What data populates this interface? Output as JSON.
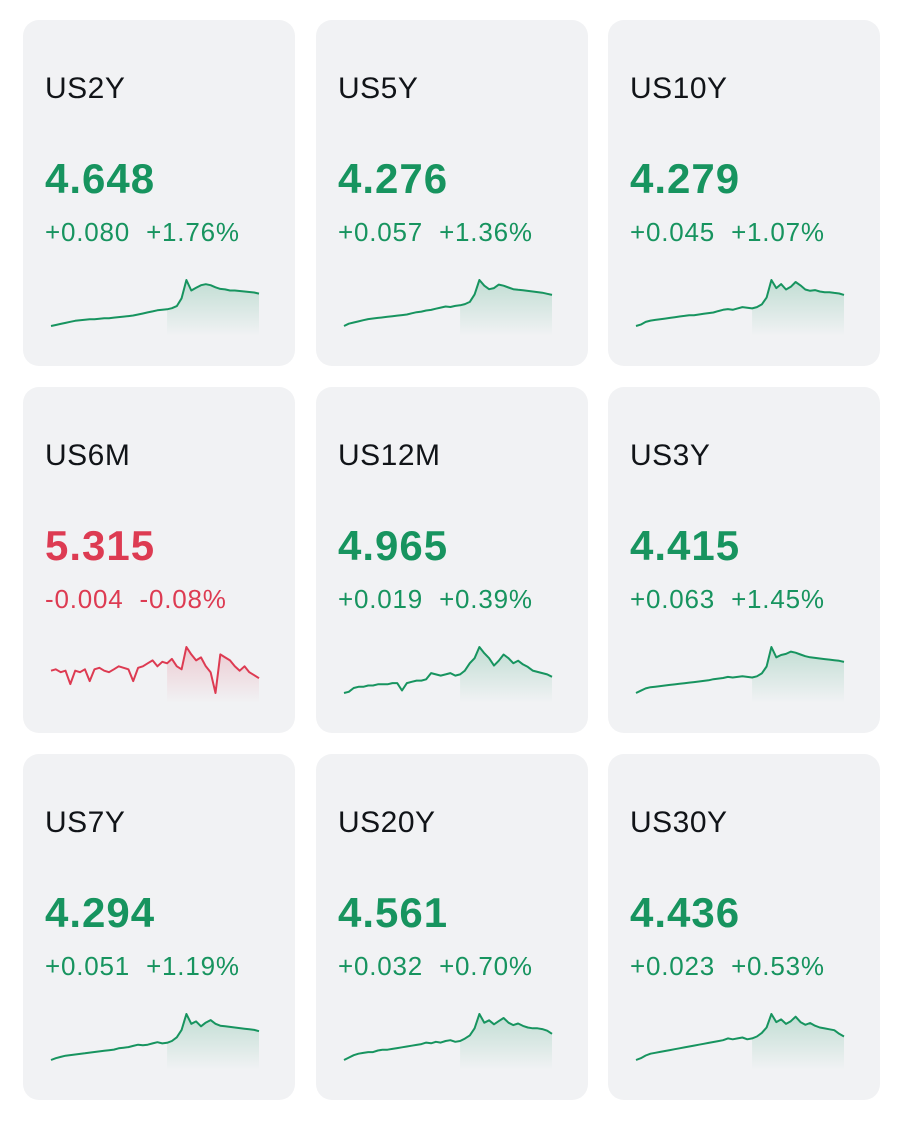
{
  "colors": {
    "up": "#17945f",
    "down": "#dd3b52",
    "card_bg": "#f1f2f4",
    "symbol": "#111418"
  },
  "cards": [
    {
      "symbol": "US2Y",
      "price": "4.648",
      "change": "+0.080",
      "change_pct": "+1.76%",
      "direction": "up",
      "spark": [
        4.572,
        4.574,
        4.576,
        4.578,
        4.58,
        4.582,
        4.583,
        4.584,
        4.585,
        4.585,
        4.586,
        4.587,
        4.587,
        4.588,
        4.589,
        4.59,
        4.591,
        4.592,
        4.594,
        4.596,
        4.598,
        4.6,
        4.602,
        4.603,
        4.604,
        4.606,
        4.61,
        4.625,
        4.66,
        4.64,
        4.645,
        4.65,
        4.652,
        4.65,
        4.646,
        4.643,
        4.642,
        4.64,
        4.64,
        4.639,
        4.638,
        4.637,
        4.636,
        4.634
      ]
    },
    {
      "symbol": "US5Y",
      "price": "4.276",
      "change": "+0.057",
      "change_pct": "+1.36%",
      "direction": "up",
      "spark": [
        4.22,
        4.224,
        4.226,
        4.228,
        4.23,
        4.232,
        4.233,
        4.234,
        4.235,
        4.236,
        4.237,
        4.238,
        4.239,
        4.24,
        4.242,
        4.244,
        4.245,
        4.247,
        4.248,
        4.25,
        4.252,
        4.254,
        4.253,
        4.255,
        4.256,
        4.258,
        4.262,
        4.275,
        4.3,
        4.29,
        4.284,
        4.286,
        4.292,
        4.29,
        4.287,
        4.284,
        4.283,
        4.282,
        4.281,
        4.28,
        4.279,
        4.278,
        4.276,
        4.274
      ]
    },
    {
      "symbol": "US10Y",
      "price": "4.279",
      "change": "+0.045",
      "change_pct": "+1.07%",
      "direction": "up",
      "spark": [
        4.23,
        4.232,
        4.236,
        4.238,
        4.239,
        4.24,
        4.241,
        4.242,
        4.243,
        4.244,
        4.245,
        4.246,
        4.246,
        4.247,
        4.248,
        4.249,
        4.25,
        4.252,
        4.254,
        4.255,
        4.254,
        4.256,
        4.258,
        4.257,
        4.256,
        4.258,
        4.262,
        4.272,
        4.298,
        4.286,
        4.292,
        4.284,
        4.288,
        4.295,
        4.29,
        4.284,
        4.282,
        4.283,
        4.281,
        4.28,
        4.28,
        4.279,
        4.278,
        4.276
      ]
    },
    {
      "symbol": "US6M",
      "price": "5.315",
      "change": "-0.004",
      "change_pct": "-0.08%",
      "direction": "down",
      "spark": [
        5.319,
        5.32,
        5.318,
        5.319,
        5.31,
        5.319,
        5.318,
        5.32,
        5.312,
        5.32,
        5.321,
        5.319,
        5.318,
        5.32,
        5.322,
        5.321,
        5.32,
        5.312,
        5.321,
        5.322,
        5.324,
        5.326,
        5.322,
        5.325,
        5.324,
        5.327,
        5.322,
        5.32,
        5.335,
        5.33,
        5.326,
        5.328,
        5.322,
        5.318,
        5.304,
        5.33,
        5.328,
        5.326,
        5.322,
        5.319,
        5.322,
        5.318,
        5.316,
        5.314
      ]
    },
    {
      "symbol": "US12M",
      "price": "4.965",
      "change": "+0.019",
      "change_pct": "+0.39%",
      "direction": "up",
      "spark": [
        4.944,
        4.945,
        4.948,
        4.949,
        4.949,
        4.95,
        4.95,
        4.951,
        4.951,
        4.951,
        4.952,
        4.952,
        4.946,
        4.952,
        4.953,
        4.954,
        4.954,
        4.955,
        4.96,
        4.959,
        4.958,
        4.959,
        4.96,
        4.958,
        4.959,
        4.962,
        4.968,
        4.972,
        4.981,
        4.976,
        4.972,
        4.966,
        4.97,
        4.975,
        4.972,
        4.968,
        4.97,
        4.967,
        4.965,
        4.962,
        4.961,
        4.96,
        4.959,
        4.957
      ]
    },
    {
      "symbol": "US3Y",
      "price": "4.415",
      "change": "+0.063",
      "change_pct": "+1.45%",
      "direction": "up",
      "spark": [
        4.35,
        4.354,
        4.358,
        4.36,
        4.361,
        4.362,
        4.363,
        4.364,
        4.365,
        4.366,
        4.367,
        4.368,
        4.369,
        4.37,
        4.371,
        4.372,
        4.374,
        4.375,
        4.376,
        4.378,
        4.377,
        4.378,
        4.379,
        4.378,
        4.377,
        4.379,
        4.384,
        4.396,
        4.43,
        4.412,
        4.416,
        4.418,
        4.422,
        4.42,
        4.417,
        4.414,
        4.412,
        4.411,
        4.41,
        4.409,
        4.408,
        4.407,
        4.406,
        4.404
      ]
    },
    {
      "symbol": "US7Y",
      "price": "4.294",
      "change": "+0.051",
      "change_pct": "+1.19%",
      "direction": "up",
      "spark": [
        4.243,
        4.246,
        4.248,
        4.25,
        4.251,
        4.252,
        4.253,
        4.254,
        4.255,
        4.256,
        4.257,
        4.258,
        4.259,
        4.26,
        4.262,
        4.263,
        4.264,
        4.266,
        4.268,
        4.267,
        4.268,
        4.27,
        4.272,
        4.27,
        4.271,
        4.274,
        4.28,
        4.292,
        4.318,
        4.302,
        4.306,
        4.298,
        4.304,
        4.308,
        4.302,
        4.299,
        4.298,
        4.297,
        4.296,
        4.295,
        4.294,
        4.293,
        4.292,
        4.29
      ]
    },
    {
      "symbol": "US20Y",
      "price": "4.561",
      "change": "+0.032",
      "change_pct": "+0.70%",
      "direction": "up",
      "spark": [
        4.525,
        4.528,
        4.531,
        4.533,
        4.534,
        4.535,
        4.535,
        4.537,
        4.538,
        4.538,
        4.539,
        4.54,
        4.541,
        4.542,
        4.543,
        4.544,
        4.545,
        4.547,
        4.546,
        4.548,
        4.547,
        4.549,
        4.55,
        4.548,
        4.549,
        4.552,
        4.556,
        4.565,
        4.583,
        4.572,
        4.575,
        4.57,
        4.574,
        4.578,
        4.572,
        4.569,
        4.571,
        4.568,
        4.566,
        4.565,
        4.565,
        4.564,
        4.562,
        4.558
      ]
    },
    {
      "symbol": "US30Y",
      "price": "4.436",
      "change": "+0.023",
      "change_pct": "+0.53%",
      "direction": "up",
      "spark": [
        4.41,
        4.412,
        4.415,
        4.417,
        4.418,
        4.419,
        4.42,
        4.421,
        4.422,
        4.423,
        4.424,
        4.425,
        4.426,
        4.427,
        4.428,
        4.429,
        4.43,
        4.431,
        4.432,
        4.434,
        4.433,
        4.434,
        4.435,
        4.433,
        4.434,
        4.436,
        4.44,
        4.446,
        4.461,
        4.452,
        4.455,
        4.45,
        4.453,
        4.458,
        4.452,
        4.449,
        4.451,
        4.448,
        4.446,
        4.445,
        4.444,
        4.443,
        4.439,
        4.436
      ]
    }
  ]
}
